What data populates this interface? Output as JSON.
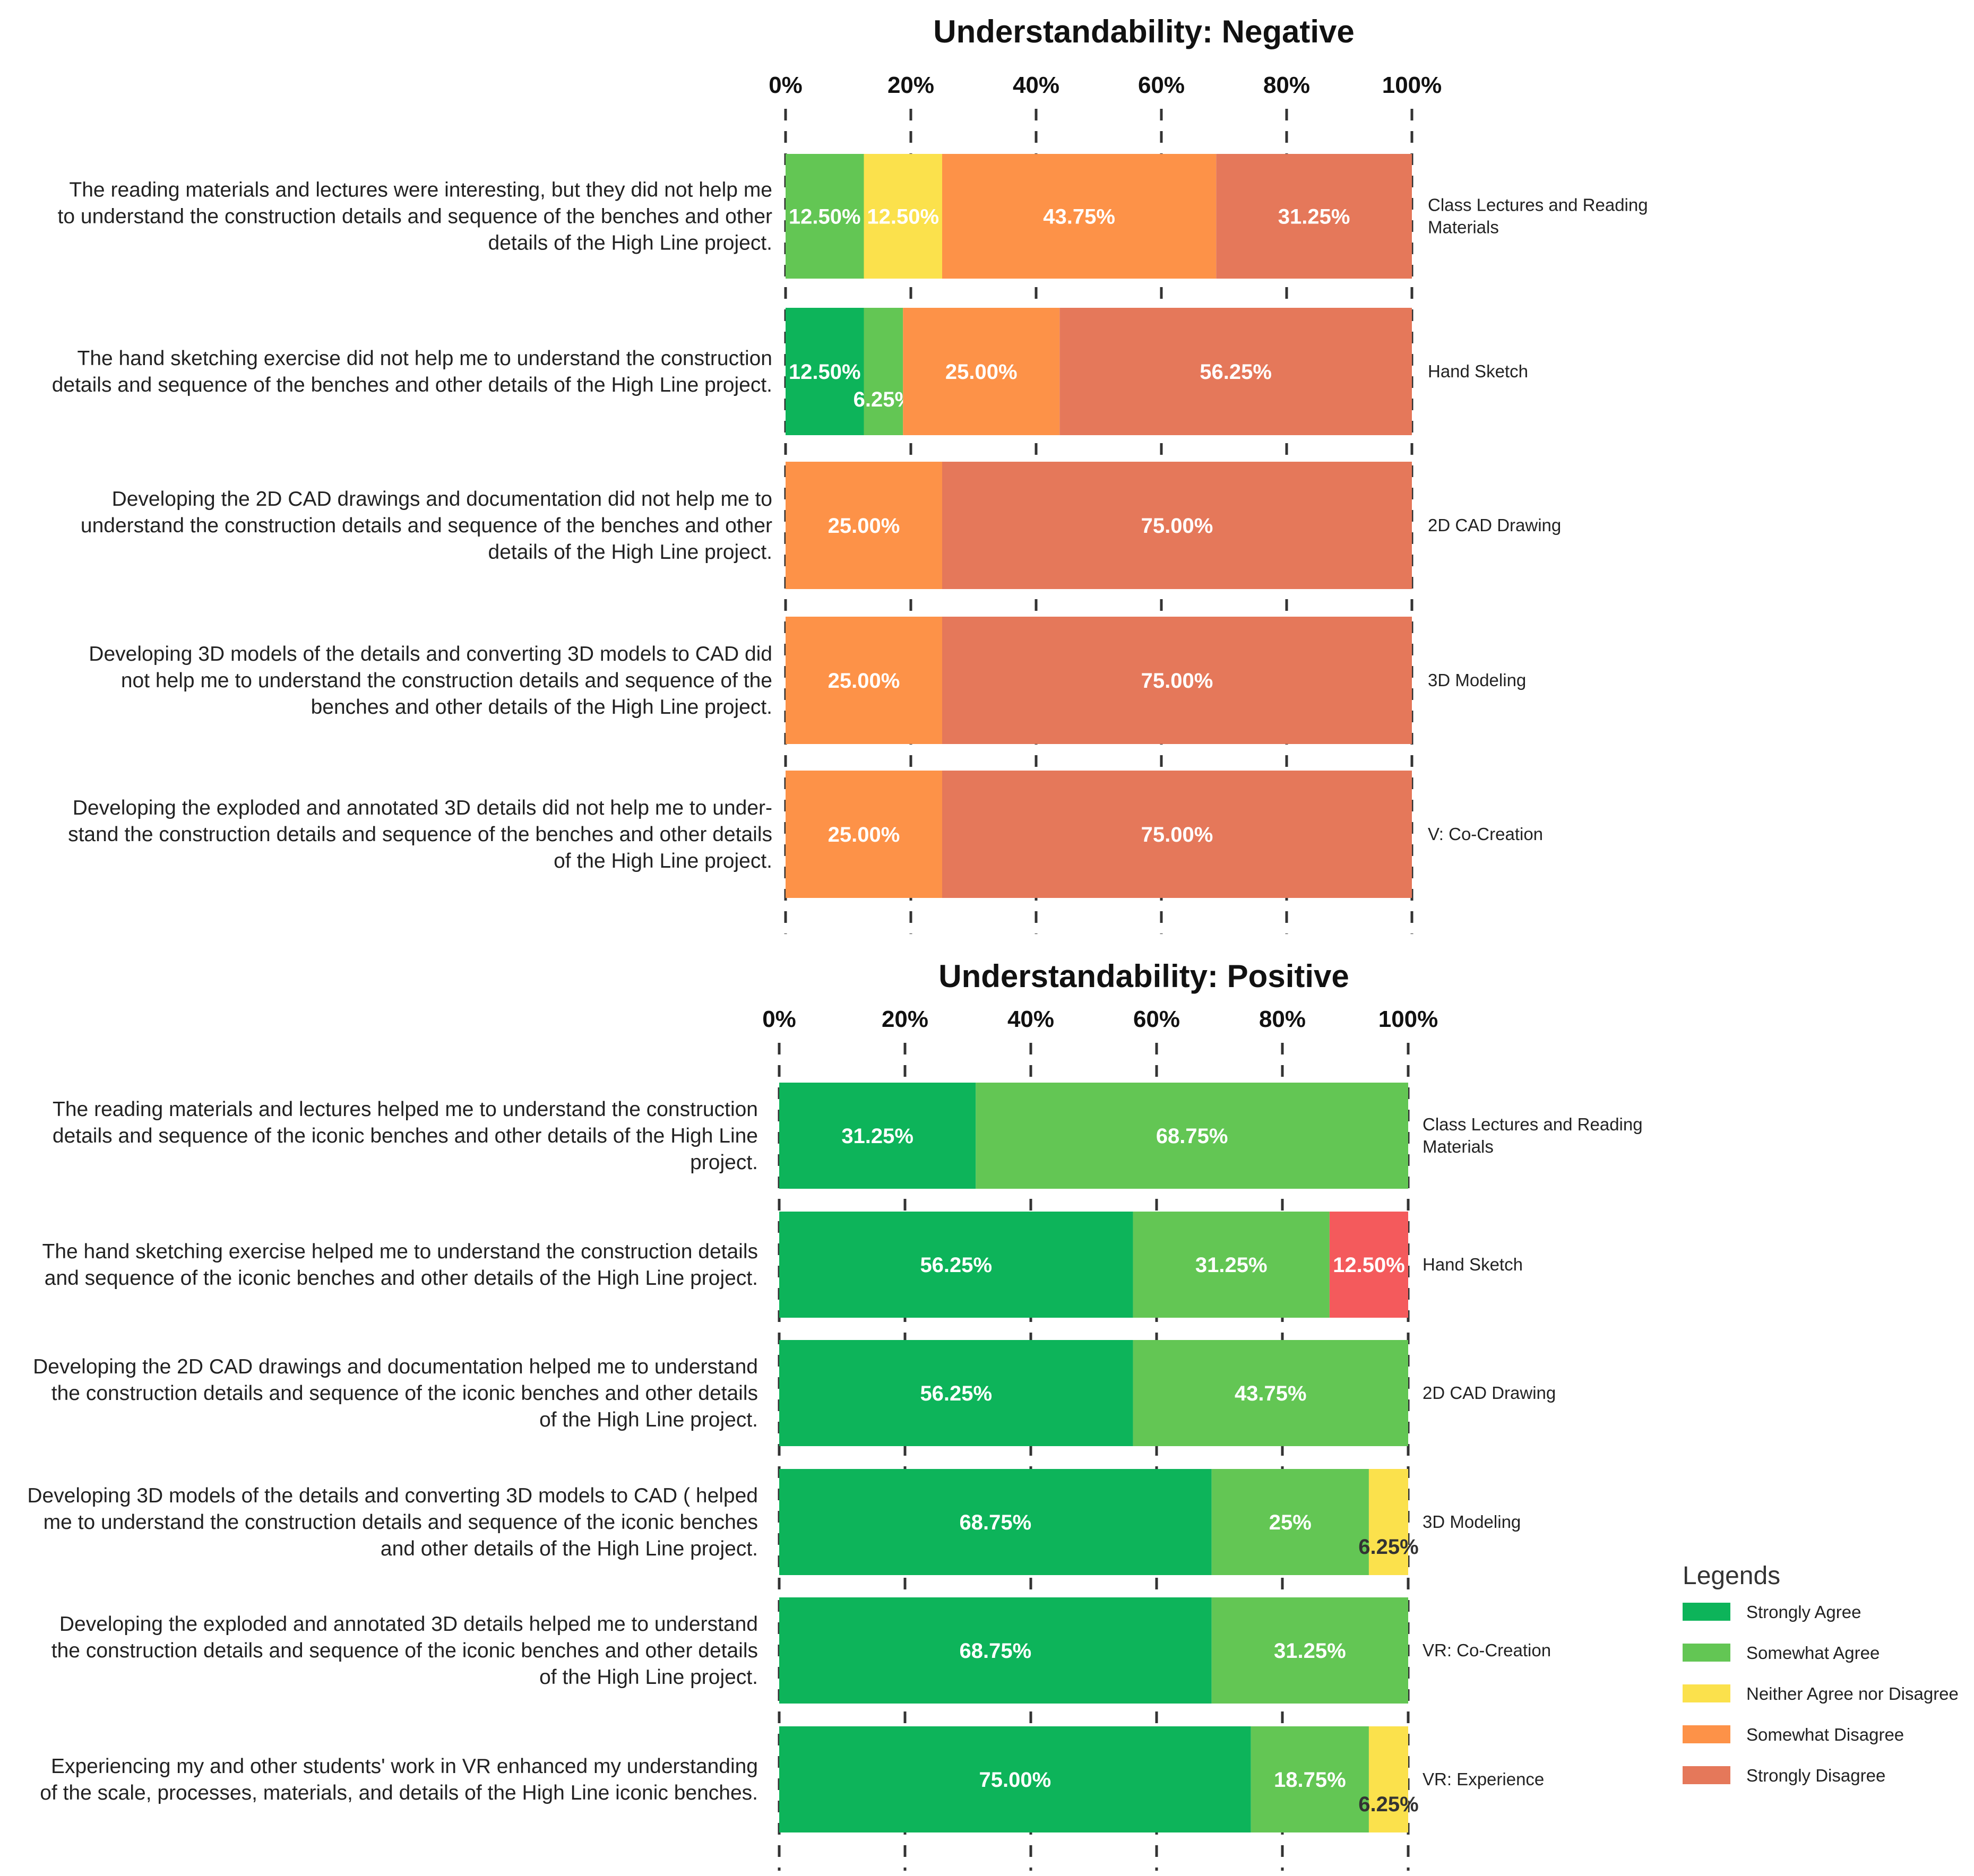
{
  "chart_data": [
    {
      "type": "bar",
      "orientation": "horizontal-stacked-percent",
      "title": "Understandability: Negative",
      "xlim": [
        0,
        100
      ],
      "ticks": [
        "0%",
        "20%",
        "40%",
        "60%",
        "80%",
        "100%"
      ],
      "grid": true,
      "rows": [
        {
          "question": [
            "The reading materials and lectures were interesting, but they did not help me",
            "to understand the construction details and sequence of the benches and other",
            "details of the High Line project."
          ],
          "category": [
            "Class Lectures and Reading",
            "Materials"
          ],
          "segments": [
            {
              "key": "somewhat_agree",
              "value": 12.5,
              "label": "12.50%"
            },
            {
              "key": "neither",
              "value": 12.5,
              "label": "12.50%"
            },
            {
              "key": "somewhat_disagree",
              "value": 43.75,
              "label": "43.75%"
            },
            {
              "key": "strongly_disagree",
              "value": 31.25,
              "label": "31.25%"
            }
          ]
        },
        {
          "question": [
            "The hand sketching exercise  did not help me to understand the construction",
            "details and sequence of the benches and other details of the High Line project."
          ],
          "category": [
            "Hand Sketch"
          ],
          "segments": [
            {
              "key": "strongly_agree",
              "value": 12.5,
              "label": "12.50%"
            },
            {
              "key": "somewhat_agree",
              "value": 6.25,
              "label": "6.25%"
            },
            {
              "key": "somewhat_disagree",
              "value": 25,
              "label": "25.00%"
            },
            {
              "key": "strongly_disagree",
              "value": 56.25,
              "label": "56.25%"
            }
          ]
        },
        {
          "question": [
            "Developing the 2D CAD drawings and documentation did not help me to",
            "understand the construction details and sequence of the benches and other",
            "details of the High Line project."
          ],
          "category": [
            "2D CAD Drawing"
          ],
          "segments": [
            {
              "key": "somewhat_disagree",
              "value": 25,
              "label": "25.00%"
            },
            {
              "key": "strongly_disagree",
              "value": 75,
              "label": "75.00%"
            }
          ]
        },
        {
          "question": [
            "Developing 3D models of the details and converting 3D models  to CAD  did",
            "not help me to understand the construction details and sequence of the",
            "benches and other details of the High Line project."
          ],
          "category": [
            "3D Modeling"
          ],
          "segments": [
            {
              "key": "somewhat_disagree",
              "value": 25,
              "label": "25.00%"
            },
            {
              "key": "strongly_disagree",
              "value": 75,
              "label": "75.00%"
            }
          ]
        },
        {
          "question": [
            "Developing the exploded and annotated 3D details  did not help me to under-",
            "stand the construction details and sequence of the benches and other details",
            "of the High Line project."
          ],
          "category": [
            "V: Co-Creation"
          ],
          "segments": [
            {
              "key": "somewhat_disagree",
              "value": 25,
              "label": "25.00%"
            },
            {
              "key": "strongly_disagree",
              "value": 75,
              "label": "75.00%"
            }
          ]
        }
      ]
    },
    {
      "type": "bar",
      "orientation": "horizontal-stacked-percent",
      "title": "Understandability: Positive",
      "xlim": [
        0,
        100
      ],
      "ticks": [
        "0%",
        "20%",
        "40%",
        "60%",
        "80%",
        "100%"
      ],
      "grid": true,
      "rows": [
        {
          "question": [
            "The reading materials and lectures helped me to understand the construction",
            "details and sequence of the iconic benches and other details of the High Line",
            "project."
          ],
          "category": [
            "Class Lectures and Reading",
            "Materials"
          ],
          "segments": [
            {
              "key": "strongly_agree",
              "value": 31.25,
              "label": "31.25%"
            },
            {
              "key": "somewhat_agree",
              "value": 68.75,
              "label": "68.75%"
            }
          ]
        },
        {
          "question": [
            "The hand sketching exercise  helped me to understand the construction details",
            "and sequence of the iconic benches and other details of the High Line project."
          ],
          "category": [
            "Hand Sketch"
          ],
          "segments": [
            {
              "key": "strongly_agree",
              "value": 56.25,
              "label": "56.25%"
            },
            {
              "key": "somewhat_agree",
              "value": 31.25,
              "label": "31.25%"
            },
            {
              "key": "red",
              "value": 12.5,
              "label": "12.50%"
            }
          ]
        },
        {
          "question": [
            "Developing the 2D CAD drawings and documentation helped me to understand",
            "the construction details and sequence of the iconic benches and other details",
            "of the High Line project."
          ],
          "category": [
            "2D CAD Drawing"
          ],
          "segments": [
            {
              "key": "strongly_agree",
              "value": 56.25,
              "label": "56.25%"
            },
            {
              "key": "somewhat_agree",
              "value": 43.75,
              "label": "43.75%"
            }
          ]
        },
        {
          "question": [
            "Developing 3D models of the details and converting 3D models to CAD ( helped",
            "me to understand the construction details and sequence of the iconic benches",
            "and other details of the High Line project."
          ],
          "category": [
            "3D Modeling"
          ],
          "segments": [
            {
              "key": "strongly_agree",
              "value": 68.75,
              "label": "68.75%"
            },
            {
              "key": "somewhat_agree",
              "value": 25,
              "label": "25%"
            },
            {
              "key": "neither",
              "value": 6.25,
              "label": "6.25%"
            }
          ]
        },
        {
          "question": [
            "Developing the exploded and annotated 3D details  helped me to understand",
            "the construction details and sequence of the iconic benches and other details",
            "of the High Line project."
          ],
          "category": [
            "VR: Co-Creation"
          ],
          "segments": [
            {
              "key": "strongly_agree",
              "value": 68.75,
              "label": "68.75%"
            },
            {
              "key": "somewhat_agree",
              "value": 31.25,
              "label": "31.25%"
            }
          ]
        },
        {
          "question": [
            "Experiencing my and other students' work  in VR enhanced my understanding",
            "of the scale, processes, materials, and details of the High Line iconic benches."
          ],
          "category": [
            "VR: Experience"
          ],
          "segments": [
            {
              "key": "strongly_agree",
              "value": 75,
              "label": "75.00%"
            },
            {
              "key": "somewhat_agree",
              "value": 18.75,
              "label": "18.75%"
            },
            {
              "key": "neither",
              "value": 6.25,
              "label": "6.25%"
            }
          ]
        }
      ]
    }
  ],
  "legend": {
    "title": "Legends",
    "items": [
      {
        "key": "strongly_agree",
        "label": "Strongly Agree"
      },
      {
        "key": "somewhat_agree",
        "label": "Somewhat Agree"
      },
      {
        "key": "neither",
        "label": "Neither Agree nor Disagree"
      },
      {
        "key": "somewhat_disagree",
        "label": "Somewhat Disagree"
      },
      {
        "key": "strongly_disagree",
        "label": "Strongly Disagree"
      }
    ]
  },
  "colors": {
    "strongly_agree": "#0db45a",
    "somewhat_agree": "#63c654",
    "neither": "#fbe14c",
    "somewhat_disagree": "#fd9248",
    "strongly_disagree": "#e5785a",
    "red": "#f45a5c"
  }
}
